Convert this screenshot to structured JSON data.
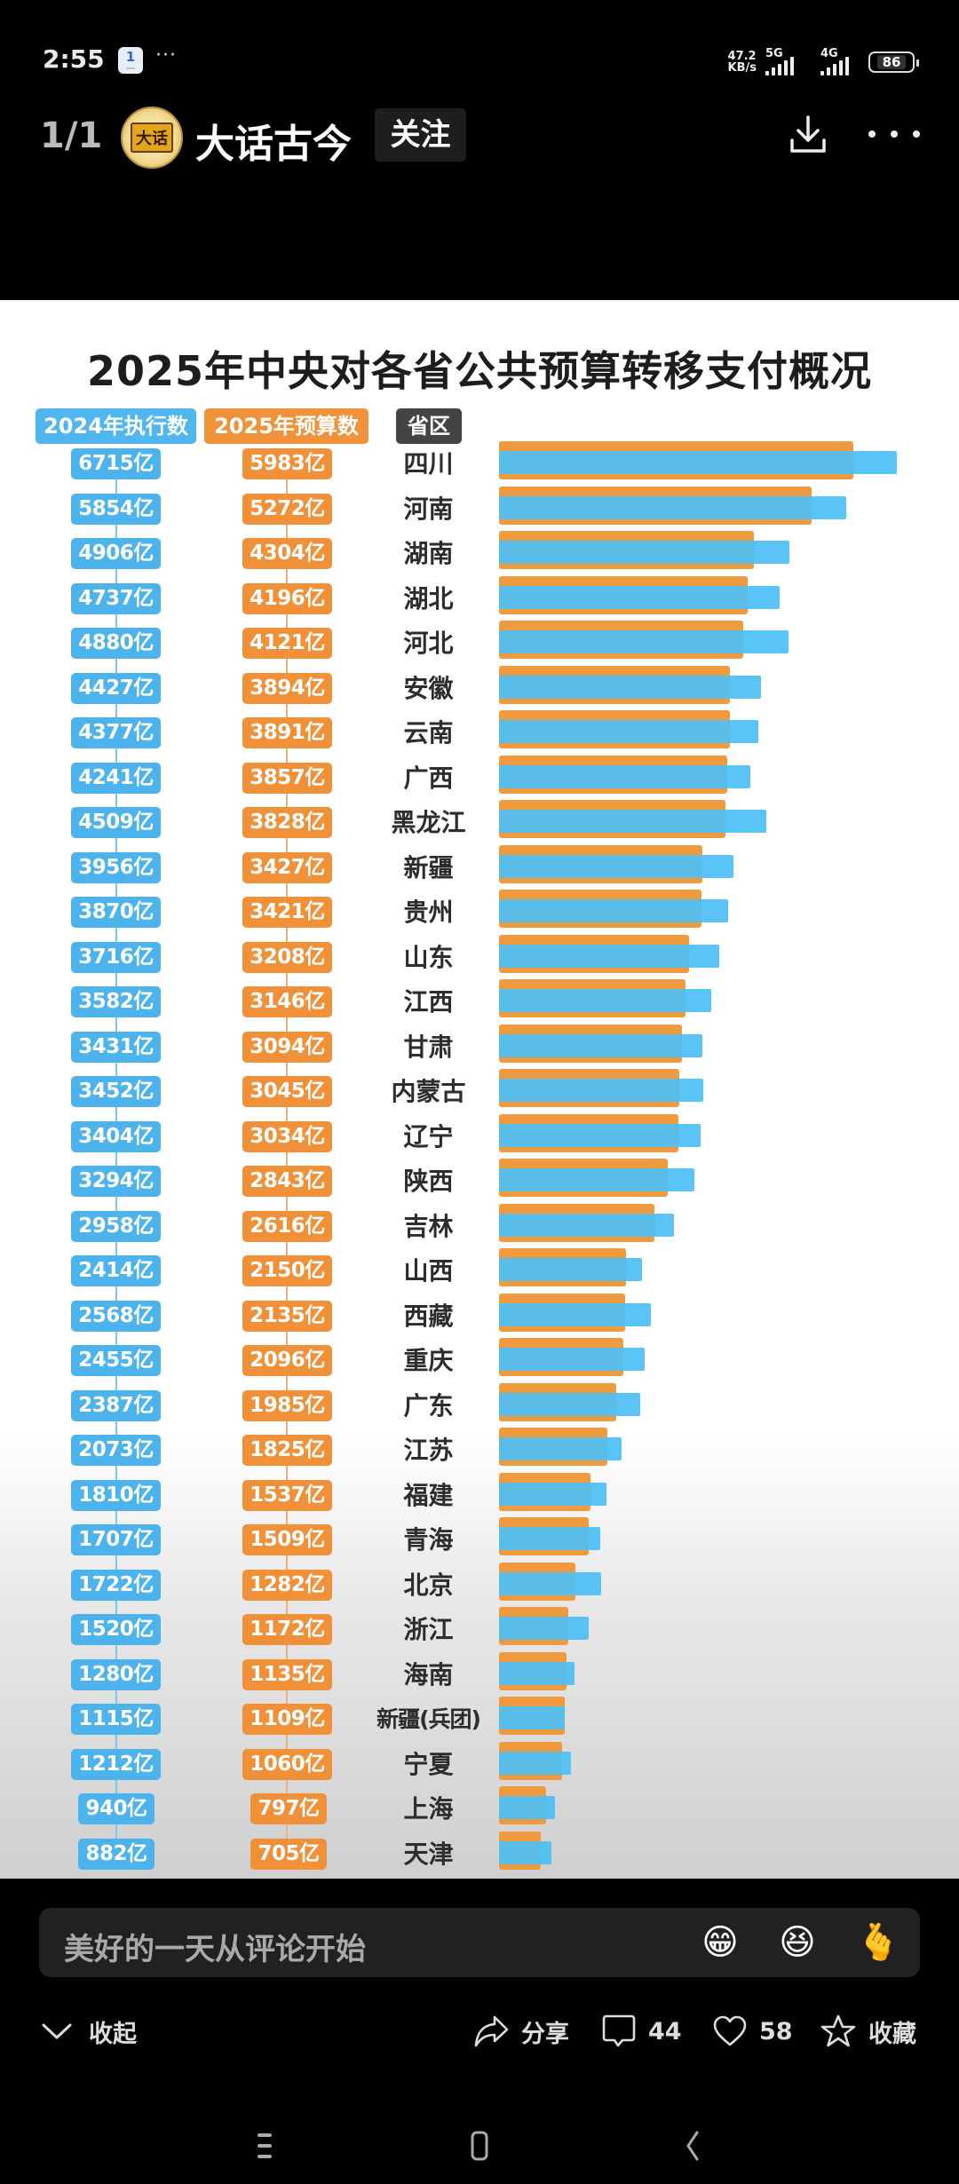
{
  "status_bar": {
    "time": "2:55",
    "notification_badge": "1",
    "overflow": "···",
    "net_speed_value": "47.2",
    "net_speed_unit": "KB/s",
    "network_1": "5G",
    "network_2": "4G",
    "battery": "86"
  },
  "header": {
    "page_counter": "1/1",
    "avatar_text": "大话",
    "author_name": "大话古今",
    "follow_label": "关注",
    "download_icon": "download-icon",
    "more_icon": "more-dots-icon"
  },
  "chart_data": {
    "type": "bar",
    "orientation": "horizontal",
    "title": "2025年中央对各省公共预算转移支付概况",
    "unit": "亿",
    "column_headers": [
      "2024年执行数",
      "2025年预算数",
      "省区"
    ],
    "legend": [
      {
        "name": "2024年执行数",
        "color": "#4fb6ef"
      },
      {
        "name": "2025年预算数",
        "color": "#f0923a"
      }
    ],
    "categories": [
      "四川",
      "河南",
      "湖南",
      "湖北",
      "河北",
      "安徽",
      "云南",
      "广西",
      "黑龙江",
      "新疆",
      "贵州",
      "山东",
      "江西",
      "甘肃",
      "内蒙古",
      "辽宁",
      "陕西",
      "吉林",
      "山西",
      "西藏",
      "重庆",
      "广东",
      "江苏",
      "福建",
      "青海",
      "北京",
      "浙江",
      "海南",
      "新疆(兵团)",
      "宁夏",
      "上海",
      "天津"
    ],
    "series": [
      {
        "name": "2024年执行数",
        "values": [
          6715,
          5854,
          4906,
          4737,
          4880,
          4427,
          4377,
          4241,
          4509,
          3956,
          3870,
          3716,
          3582,
          3431,
          3452,
          3404,
          3294,
          2958,
          2414,
          2568,
          2455,
          2387,
          2073,
          1810,
          1707,
          1722,
          1520,
          1280,
          1115,
          1212,
          940,
          882
        ]
      },
      {
        "name": "2025年预算数",
        "values": [
          5983,
          5272,
          4304,
          4196,
          4121,
          3894,
          3891,
          3857,
          3828,
          3427,
          3421,
          3208,
          3146,
          3094,
          3045,
          3034,
          2843,
          2616,
          2150,
          2135,
          2096,
          1985,
          1825,
          1537,
          1509,
          1282,
          1172,
          1135,
          1109,
          1060,
          797,
          705
        ]
      }
    ],
    "xlabel": "",
    "ylabel": "",
    "grid": false
  },
  "comment": {
    "placeholder": "美好的一天从评论开始",
    "emojis": [
      "😁",
      "😆",
      "🫰"
    ]
  },
  "actions": {
    "collapse_label": "收起",
    "share_label": "分享",
    "comment_count": "44",
    "like_count": "58",
    "favorite_label": "收藏"
  },
  "colors": {
    "blue": "#4fb6ef",
    "orange": "#f0923a",
    "province_header": "#444444"
  }
}
